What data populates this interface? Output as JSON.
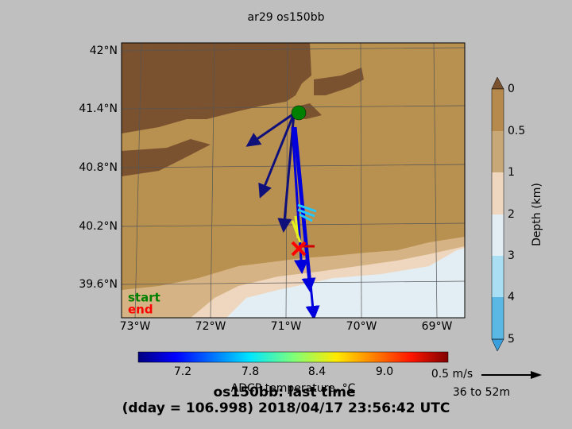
{
  "map": {
    "title": "ar29 os150bb",
    "lat_labels": [
      "42°N",
      "41.4°N",
      "40.8°N",
      "40.2°N",
      "39.6°N"
    ],
    "lon_labels": [
      "73°W",
      "72°W",
      "71°W",
      "70°W",
      "69°W"
    ],
    "legend": {
      "start": "start",
      "end": "end"
    },
    "depth_colorbar": {
      "ticks": [
        "0",
        "0.5",
        "1",
        "2",
        "3",
        "4",
        "5"
      ],
      "label": "Depth (km)"
    },
    "temperature_colorbar": {
      "ticks": [
        "7.2",
        "7.8",
        "8.4",
        "9.0"
      ],
      "label": "ADCP temperature, °C"
    },
    "scale": {
      "speed": "0.5 m/s",
      "depth_range": "36 to 52m"
    },
    "footer": {
      "line1": "os150bb: last time",
      "line2": "(dday = 106.998) 2018/04/17 23:56:42 UTC"
    }
  }
}
